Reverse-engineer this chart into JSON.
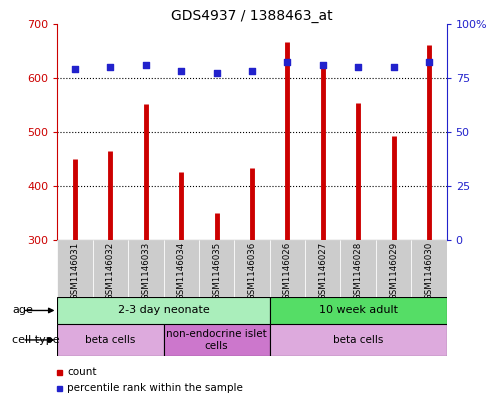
{
  "title": "GDS4937 / 1388463_at",
  "samples": [
    "GSM1146031",
    "GSM1146032",
    "GSM1146033",
    "GSM1146034",
    "GSM1146035",
    "GSM1146036",
    "GSM1146026",
    "GSM1146027",
    "GSM1146028",
    "GSM1146029",
    "GSM1146030"
  ],
  "count_values": [
    450,
    465,
    552,
    425,
    350,
    433,
    665,
    625,
    553,
    492,
    660
  ],
  "percentile_values": [
    79,
    80,
    81,
    78,
    77,
    78,
    82,
    81,
    80,
    80,
    82
  ],
  "ylim_left": [
    300,
    700
  ],
  "ylim_right": [
    0,
    100
  ],
  "yticks_left": [
    300,
    400,
    500,
    600,
    700
  ],
  "yticks_right": [
    0,
    25,
    50,
    75,
    100
  ],
  "bar_color": "#cc0000",
  "scatter_color": "#2222cc",
  "background_color": "#ffffff",
  "age_groups": [
    {
      "label": "2-3 day neonate",
      "start": 0,
      "end": 6,
      "color": "#aaeebb"
    },
    {
      "label": "10 week adult",
      "start": 6,
      "end": 11,
      "color": "#55dd66"
    }
  ],
  "cell_type_groups": [
    {
      "label": "beta cells",
      "start": 0,
      "end": 3,
      "color": "#ddaadd"
    },
    {
      "label": "non-endocrine islet\ncells",
      "start": 3,
      "end": 6,
      "color": "#cc77cc"
    },
    {
      "label": "beta cells",
      "start": 6,
      "end": 11,
      "color": "#ddaadd"
    }
  ],
  "legend_items": [
    {
      "color": "#cc0000",
      "label": "count"
    },
    {
      "color": "#2222cc",
      "label": "percentile rank within the sample"
    }
  ]
}
